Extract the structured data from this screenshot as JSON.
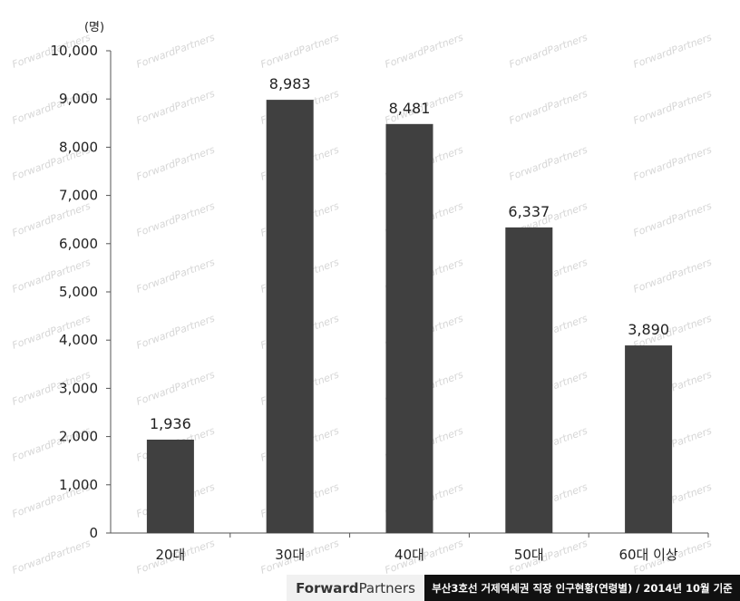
{
  "chart_data": {
    "type": "bar",
    "unit_label": "(명)",
    "categories": [
      "20대",
      "30대",
      "40대",
      "50대",
      "60대 이상"
    ],
    "values": [
      1936,
      8983,
      8481,
      6337,
      3890
    ],
    "data_labels": [
      "1,936",
      "8,983",
      "8,481",
      "6,337",
      "3,890"
    ],
    "ylim": [
      0,
      10000
    ],
    "yticks": [
      0,
      1000,
      2000,
      3000,
      4000,
      5000,
      6000,
      7000,
      8000,
      9000,
      10000
    ],
    "ytick_labels": [
      "0",
      "1,000",
      "2,000",
      "3,000",
      "4,000",
      "5,000",
      "6,000",
      "7,000",
      "8,000",
      "9,000",
      "10,000"
    ],
    "bar_color": "#404040",
    "grid": false
  },
  "watermark": "ForwardPartners",
  "footer": {
    "brand_bold": "Forward",
    "brand_light": "Partners",
    "caption": "부산3호선 거제역세권 직장 인구현황(연령별) / 2014년 10월 기준"
  }
}
